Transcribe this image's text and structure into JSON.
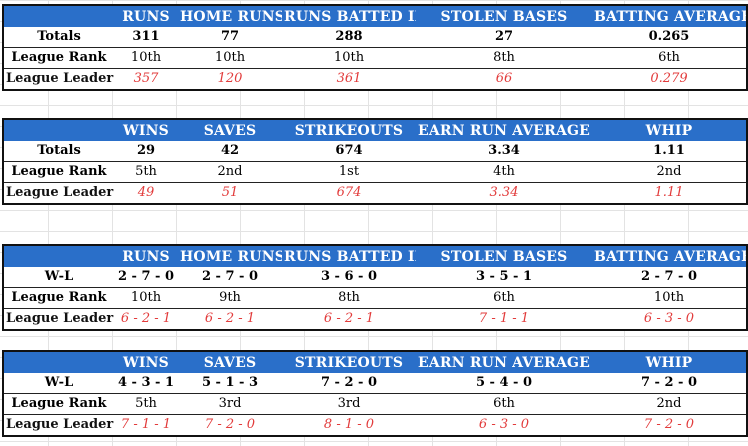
{
  "batting_headers": [
    "RUNS",
    "HOME RUNS",
    "RUNS BATTED IN",
    "STOLEN BASES",
    "BATTING AVERAGE"
  ],
  "pitching_headers": [
    "WINS",
    "SAVES",
    "STRIKEOUTS",
    "EARN RUN AVERAGE",
    "WHIP"
  ],
  "row_labels": {
    "totals": "Totals",
    "wl": "W-L",
    "rank": "League Rank",
    "leader": "League Leader"
  },
  "batting_season": {
    "totals": [
      "311",
      "77",
      "288",
      "27",
      "0.265"
    ],
    "rank": [
      "10th",
      "10th",
      "10th",
      "8th",
      "6th"
    ],
    "leader": [
      "357",
      "120",
      "361",
      "66",
      "0.279"
    ]
  },
  "pitching_season": {
    "totals": [
      "29",
      "42",
      "674",
      "3.34",
      "1.11"
    ],
    "rank": [
      "5th",
      "2nd",
      "1st",
      "4th",
      "2nd"
    ],
    "leader": [
      "49",
      "51",
      "674",
      "3.34",
      "1.11"
    ]
  },
  "batting_wl": {
    "wl": [
      "2 - 7 - 0",
      "2 - 7 - 0",
      "3 - 6 - 0",
      "3 - 5 - 1",
      "2 - 7 - 0"
    ],
    "rank": [
      "10th",
      "9th",
      "8th",
      "6th",
      "10th"
    ],
    "leader": [
      "6 - 2 - 1",
      "6 - 2 - 1",
      "6 - 2 - 1",
      "7 - 1 - 1",
      "6 - 3 - 0"
    ]
  },
  "pitching_wl": {
    "wl": [
      "4 - 3 - 1",
      "5 - 1 - 3",
      "7 - 2 - 0",
      "5 - 4 - 0",
      "7 - 2 - 0"
    ],
    "rank": [
      "5th",
      "3rd",
      "3rd",
      "6th",
      "2nd"
    ],
    "leader": [
      "7 - 1 - 1",
      "7 - 2 - 0",
      "8 - 1 - 0",
      "6 - 3 - 0",
      "7 - 2 - 0"
    ]
  }
}
